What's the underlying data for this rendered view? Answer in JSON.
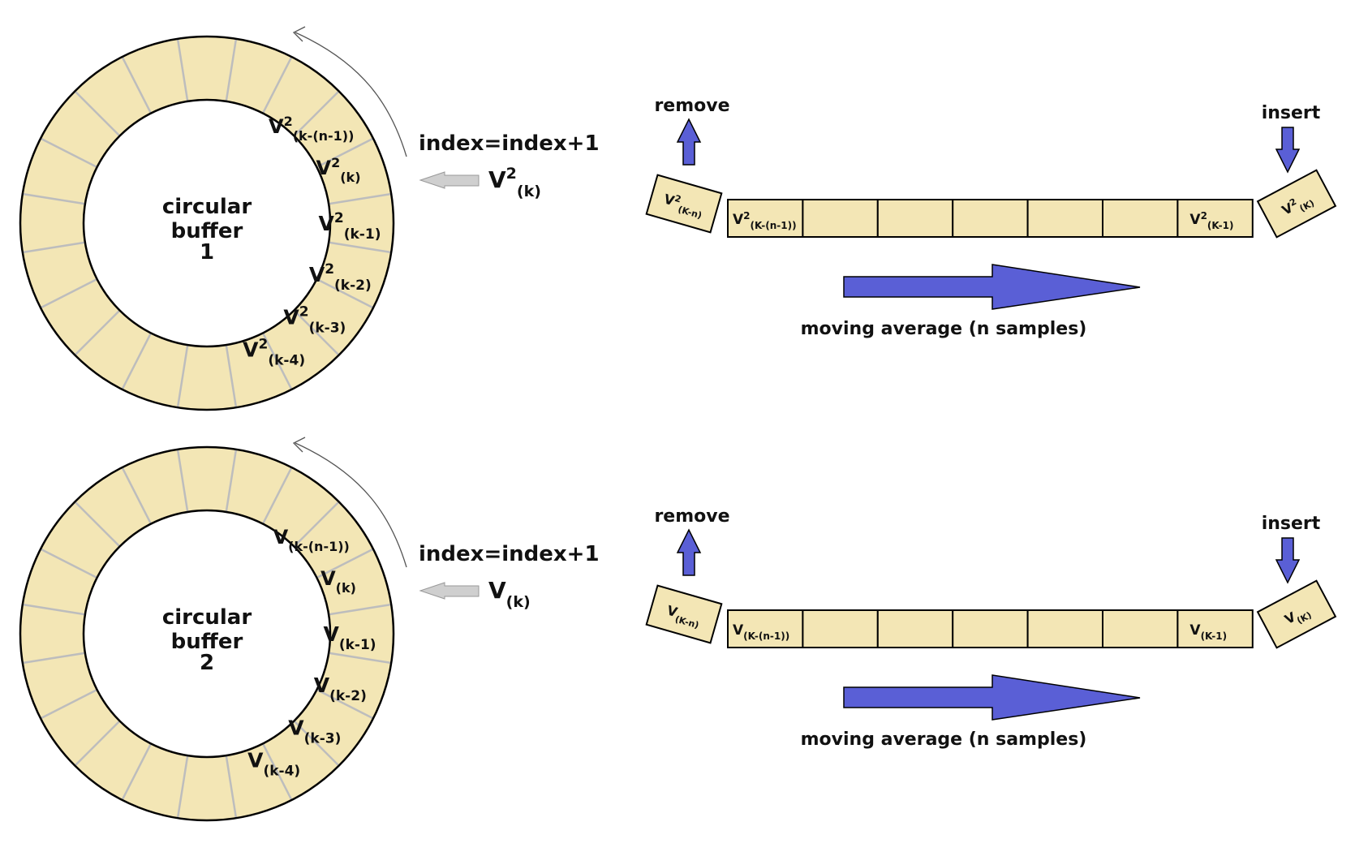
{
  "colors": {
    "fill": "#f3e6b5",
    "accent": "#5a5fd6",
    "grey_arrow": "#cfcfcf",
    "divider": "#bdbdbd",
    "stroke": "#000000"
  },
  "panels": [
    {
      "buffer": {
        "line1": "circular",
        "line2": "buffer",
        "number": "1"
      },
      "ring_labels": [
        {
          "base": "V",
          "sup": "2",
          "sub": "(k-(n-1))"
        },
        {
          "base": "V",
          "sup": "2",
          "sub": "(k)"
        },
        {
          "base": "V",
          "sup": "2",
          "sub": "(k-1)"
        },
        {
          "base": "V",
          "sup": "2",
          "sub": "(k-2)"
        },
        {
          "base": "V",
          "sup": "2",
          "sub": "(k-3)"
        },
        {
          "base": "V",
          "sup": "2",
          "sub": "(k-4)"
        }
      ],
      "index_text": "index=index+1",
      "input": {
        "base": "V",
        "sup": "2",
        "sub": "(k)"
      },
      "remove_label": "remove",
      "insert_label": "insert",
      "removed": {
        "base": "V",
        "sup": "2",
        "sub": "(K-n)"
      },
      "inserted": {
        "base": "V",
        "sup": "2",
        "sub": "(K)"
      },
      "cells": [
        {
          "base": "V",
          "sup": "2",
          "sub": "(K-(n-1))"
        },
        {
          "base": "",
          "sup": "",
          "sub": ""
        },
        {
          "base": "",
          "sup": "",
          "sub": ""
        },
        {
          "base": "",
          "sup": "",
          "sub": ""
        },
        {
          "base": "",
          "sup": "",
          "sub": ""
        },
        {
          "base": "",
          "sup": "",
          "sub": ""
        },
        {
          "base": "V",
          "sup": "2",
          "sub": "(K-1)"
        }
      ],
      "direction_label": "moving average (n samples)"
    },
    {
      "buffer": {
        "line1": "circular",
        "line2": "buffer",
        "number": "2"
      },
      "ring_labels": [
        {
          "base": "V",
          "sup": "",
          "sub": "(k-(n-1))"
        },
        {
          "base": "V",
          "sup": "",
          "sub": "(k)"
        },
        {
          "base": "V",
          "sup": "",
          "sub": "(k-1)"
        },
        {
          "base": "V",
          "sup": "",
          "sub": "(k-2)"
        },
        {
          "base": "V",
          "sup": "",
          "sub": "(k-3)"
        },
        {
          "base": "V",
          "sup": "",
          "sub": "(k-4)"
        }
      ],
      "index_text": "index=index+1",
      "input": {
        "base": "V",
        "sup": "",
        "sub": "(k)"
      },
      "remove_label": "remove",
      "insert_label": "insert",
      "removed": {
        "base": "V",
        "sup": "",
        "sub": "(K-n)"
      },
      "inserted": {
        "base": "V",
        "sup": "",
        "sub": "(K)"
      },
      "cells": [
        {
          "base": "V",
          "sup": "",
          "sub": "(K-(n-1))"
        },
        {
          "base": "",
          "sup": "",
          "sub": ""
        },
        {
          "base": "",
          "sup": "",
          "sub": ""
        },
        {
          "base": "",
          "sup": "",
          "sub": ""
        },
        {
          "base": "",
          "sup": "",
          "sub": ""
        },
        {
          "base": "",
          "sup": "",
          "sub": ""
        },
        {
          "base": "V",
          "sup": "",
          "sub": "(K-1)"
        }
      ],
      "direction_label": "moving average (n samples)"
    }
  ]
}
